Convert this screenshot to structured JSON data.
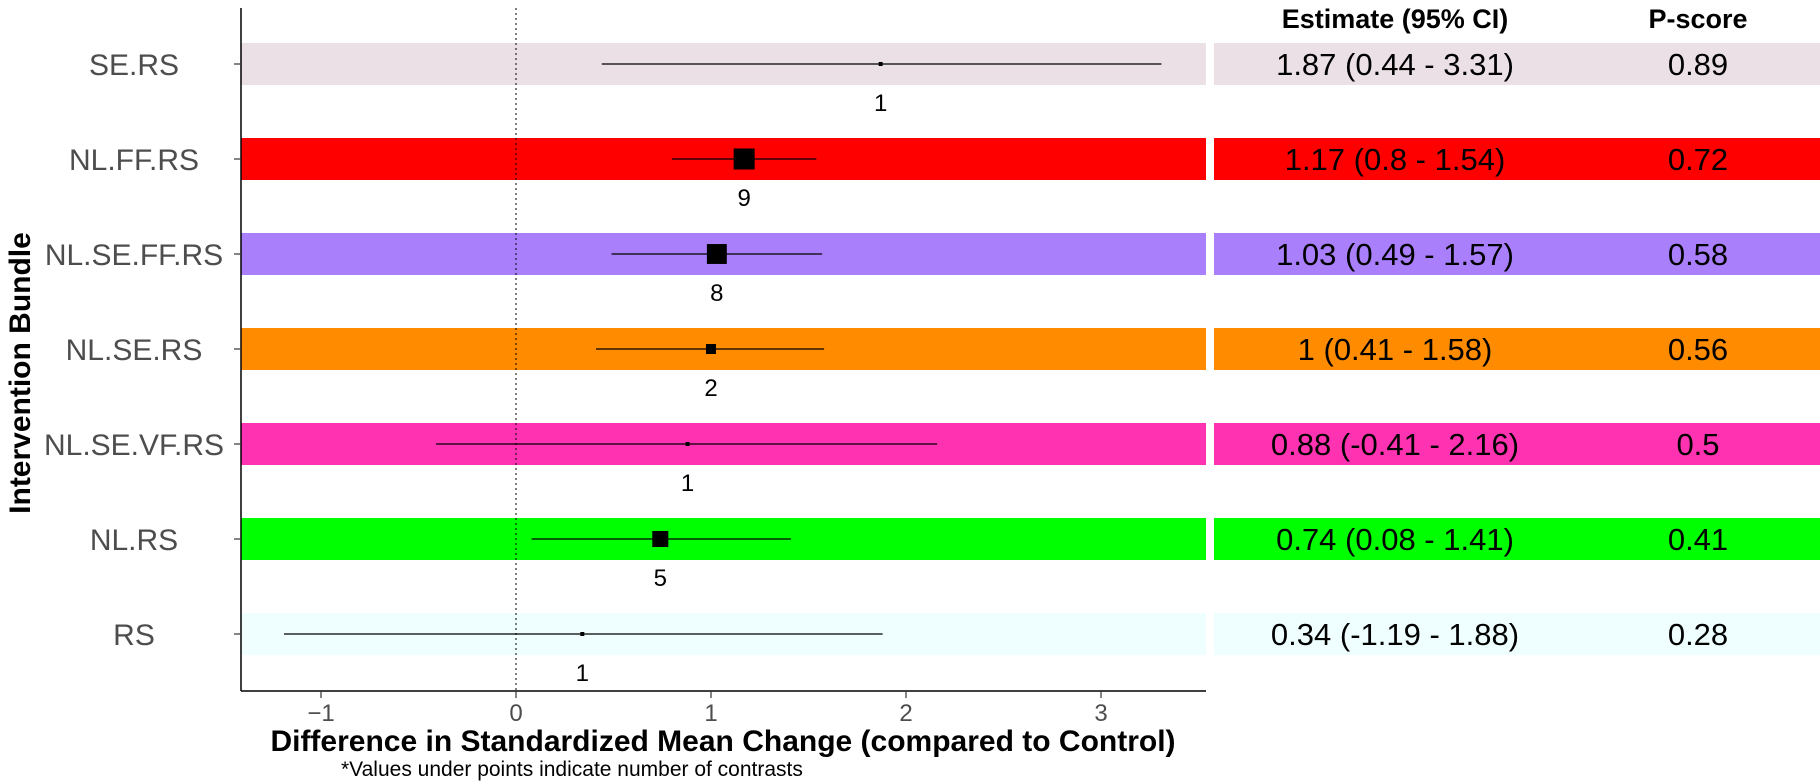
{
  "chart_data": {
    "type": "forest",
    "xlabel": "Difference in Standardized Mean Change (compared to Control)",
    "ylabel": "Intervention Bundle",
    "note": "*Values under points indicate number of contrasts",
    "xlim": [
      -1.4,
      3.55
    ],
    "xticks": [
      -1,
      0,
      1,
      2,
      3
    ],
    "reference_line": 0,
    "grid": false,
    "table_headers": {
      "estimate": "Estimate (95% CI)",
      "pscore": "P-score"
    },
    "rows": [
      {
        "label": "SE.RS",
        "estimate": 1.87,
        "lower": 0.44,
        "upper": 3.31,
        "n_contrasts": "1",
        "ci_text": "1.87 (0.44 - 3.31)",
        "pscore": "0.89",
        "color": "#ebe0e5"
      },
      {
        "label": "NL.FF.RS",
        "estimate": 1.17,
        "lower": 0.8,
        "upper": 1.54,
        "n_contrasts": "9",
        "ci_text": "1.17 (0.8 - 1.54)",
        "pscore": "0.72",
        "color": "#ff0000"
      },
      {
        "label": "NL.SE.FF.RS",
        "estimate": 1.03,
        "lower": 0.49,
        "upper": 1.57,
        "n_contrasts": "8",
        "ci_text": "1.03 (0.49 - 1.57)",
        "pscore": "0.58",
        "color": "#a97ffc"
      },
      {
        "label": "NL.SE.RS",
        "estimate": 1.0,
        "lower": 0.41,
        "upper": 1.58,
        "n_contrasts": "2",
        "ci_text": "1 (0.41 - 1.58)",
        "pscore": "0.56",
        "color": "#ff8c00"
      },
      {
        "label": "NL.SE.VF.RS",
        "estimate": 0.88,
        "lower": -0.41,
        "upper": 2.16,
        "n_contrasts": "1",
        "ci_text": "0.88 (-0.41 - 2.16)",
        "pscore": "0.5",
        "color": "#ff33b1"
      },
      {
        "label": "NL.RS",
        "estimate": 0.74,
        "lower": 0.08,
        "upper": 1.41,
        "n_contrasts": "5",
        "ci_text": "0.74 (0.08 - 1.41)",
        "pscore": "0.41",
        "color": "#00ff00"
      },
      {
        "label": "RS",
        "estimate": 0.34,
        "lower": -1.19,
        "upper": 1.88,
        "n_contrasts": "1",
        "ci_text": "0.34 (-1.19 - 1.88)",
        "pscore": "0.28",
        "color": "#effefe"
      }
    ]
  }
}
